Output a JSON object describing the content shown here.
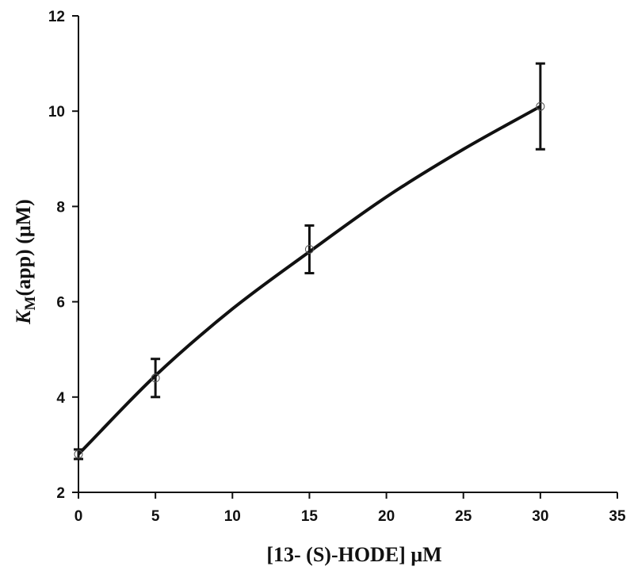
{
  "chart_data": {
    "type": "scatter",
    "title": "",
    "xlabel": "[13- (S)-HODE] μM",
    "ylabel": {
      "symbol": "K",
      "subscript": "M",
      "rest": "(app) (μM)"
    },
    "xlim": [
      0,
      35
    ],
    "ylim": [
      2,
      12
    ],
    "xticks": [
      0,
      5,
      10,
      15,
      20,
      25,
      30,
      35
    ],
    "yticks": [
      2,
      4,
      6,
      8,
      10,
      12
    ],
    "grid": false,
    "legend": "none",
    "series": [
      {
        "marker": "open-circle",
        "points": [
          {
            "x": 0,
            "y": 2.8,
            "err": 0.1
          },
          {
            "x": 5,
            "y": 4.4,
            "err": 0.4
          },
          {
            "x": 15,
            "y": 7.1,
            "err": 0.5
          },
          {
            "x": 30,
            "y": 10.1,
            "err": 0.9
          }
        ]
      }
    ],
    "fit_curve": {
      "type": "smooth",
      "x": [
        0,
        5,
        10,
        15,
        20,
        25,
        30
      ],
      "y": [
        2.8,
        4.45,
        5.85,
        7.05,
        8.2,
        9.2,
        10.1
      ]
    },
    "colors": {
      "line": "#111111",
      "marker_edge": "#555555",
      "axis": "#111111"
    }
  }
}
